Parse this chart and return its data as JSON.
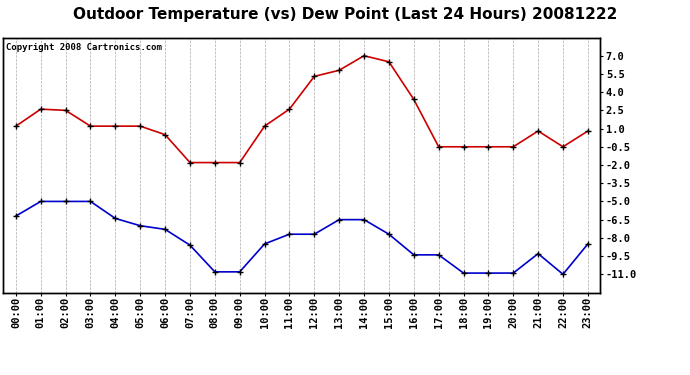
{
  "title": "Outdoor Temperature (vs) Dew Point (Last 24 Hours) 20081222",
  "copyright": "Copyright 2008 Cartronics.com",
  "x_labels": [
    "00:00",
    "01:00",
    "02:00",
    "03:00",
    "04:00",
    "05:00",
    "06:00",
    "07:00",
    "08:00",
    "09:00",
    "10:00",
    "11:00",
    "12:00",
    "13:00",
    "14:00",
    "15:00",
    "16:00",
    "17:00",
    "18:00",
    "19:00",
    "20:00",
    "21:00",
    "22:00",
    "23:00"
  ],
  "temp_data": [
    1.2,
    2.6,
    2.5,
    1.2,
    1.2,
    1.2,
    0.5,
    -1.8,
    -1.8,
    -1.8,
    1.2,
    2.6,
    5.3,
    5.8,
    7.0,
    6.5,
    3.4,
    -0.5,
    -0.5,
    -0.5,
    -0.5,
    0.8,
    -0.5,
    0.8
  ],
  "dew_data": [
    -6.2,
    -5.0,
    -5.0,
    -5.0,
    -6.4,
    -7.0,
    -7.3,
    -8.6,
    -10.8,
    -10.8,
    -8.5,
    -7.7,
    -7.7,
    -6.5,
    -6.5,
    -7.7,
    -9.4,
    -9.4,
    -10.9,
    -10.9,
    -10.9,
    -9.3,
    -11.0,
    -8.5
  ],
  "temp_color": "#cc0000",
  "dew_color": "#0000cc",
  "marker_color": "#000000",
  "ylim": [
    -12.5,
    8.5
  ],
  "y_right_ticks": [
    7.0,
    5.5,
    4.0,
    2.5,
    1.0,
    -0.5,
    -2.0,
    -3.5,
    -5.0,
    -6.5,
    -8.0,
    -9.5,
    -11.0
  ],
  "background_color": "#ffffff",
  "grid_color": "#aaaaaa",
  "title_fontsize": 11,
  "copyright_fontsize": 6.5,
  "tick_fontsize": 7.5
}
